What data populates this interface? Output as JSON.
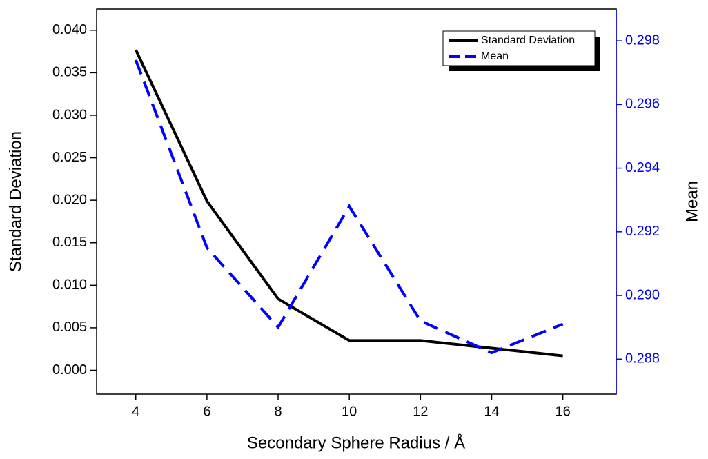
{
  "chart_data": {
    "type": "line",
    "x_label": "Secondary Sphere Radius / Å",
    "y_label": "Standard Deviation",
    "y2_label": "Mean",
    "x": [
      4,
      6,
      8,
      10,
      12,
      14,
      16
    ],
    "series": [
      {
        "name": "Standard Deviation",
        "color": "#000000",
        "dash": "solid",
        "values": [
          0.0377,
          0.0199,
          0.0084,
          0.0035,
          0.0035,
          0.0026,
          0.0017
        ]
      },
      {
        "name": "Mean",
        "color": "#0000ff",
        "dash": "dashed",
        "axis": "y2",
        "values": [
          0.2974,
          0.2915,
          0.289,
          0.2928,
          0.2892,
          0.2882,
          0.2891
        ]
      }
    ],
    "xlim": [
      2.9,
      17.5
    ],
    "xticks": [
      4,
      6,
      8,
      10,
      12,
      14,
      16
    ],
    "ylim": [
      -0.0028,
      0.0425
    ],
    "yticks": [
      {
        "value": 0,
        "label": "0.000"
      },
      {
        "value": 0.005,
        "label": "0.005"
      },
      {
        "value": 0.01,
        "label": "0.010"
      },
      {
        "value": 0.015,
        "label": "0.015"
      },
      {
        "value": 0.02,
        "label": "0.020"
      },
      {
        "value": 0.025,
        "label": "0.025"
      },
      {
        "value": 0.03,
        "label": "0.030"
      },
      {
        "value": 0.035,
        "label": "0.035"
      },
      {
        "value": 0.04,
        "label": "0.040"
      }
    ],
    "y2lim": [
      0.2869,
      0.299
    ],
    "y2ticks": [
      0.288,
      {
        "value": 0.29,
        "label": "0.290"
      },
      0.292,
      0.294,
      0.296,
      0.298
    ],
    "y2_color": "#0000ff",
    "legend": "top-right",
    "grid": false
  }
}
